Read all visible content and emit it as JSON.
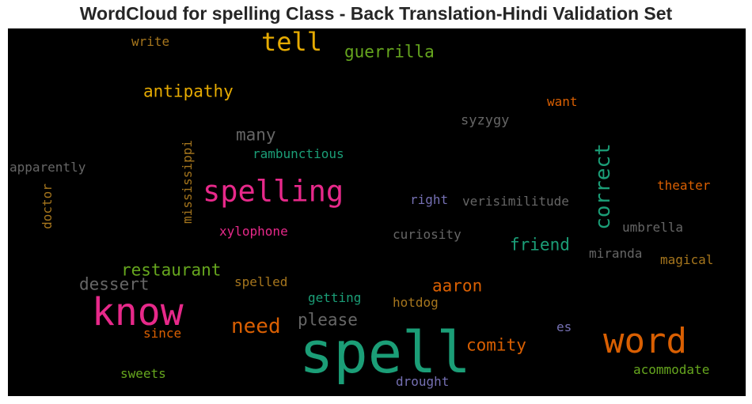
{
  "title": "WordCloud for spelling Class - Back Translation-Hindi Validation Set",
  "colors": {
    "green": "#1b9e77",
    "orange": "#d95f02",
    "purple": "#7570b3",
    "pink": "#e7298a",
    "olive": "#66a61e",
    "gold": "#e6ab02",
    "brown": "#a6761d",
    "gray": "#666666"
  },
  "words": {
    "spell": "spell",
    "know": "know",
    "word": "word",
    "spelling": "spelling",
    "tell": "tell",
    "correct": "correct",
    "need": "need",
    "guerrilla": "guerrilla",
    "antipathy": "antipathy",
    "restaurant": "restaurant",
    "friend": "friend",
    "comity": "comity",
    "aaron": "aaron",
    "please": "please",
    "many": "many",
    "dessert": "dessert",
    "mississippi": "mississippi",
    "doctor": "doctor",
    "write": "write",
    "want": "want",
    "syzygy": "syzygy",
    "rambunctious": "rambunctious",
    "apparently": "apparently",
    "theater": "theater",
    "right": "right",
    "verisimilitude": "verisimilitude",
    "xylophone": "xylophone",
    "curiosity": "curiosity",
    "umbrella": "umbrella",
    "miranda": "miranda",
    "magical": "magical",
    "spelled": "spelled",
    "getting": "getting",
    "hotdog": "hotdog",
    "es": "es",
    "since": "since",
    "sweets": "sweets",
    "drought": "drought",
    "acommodate": "acommodate"
  }
}
